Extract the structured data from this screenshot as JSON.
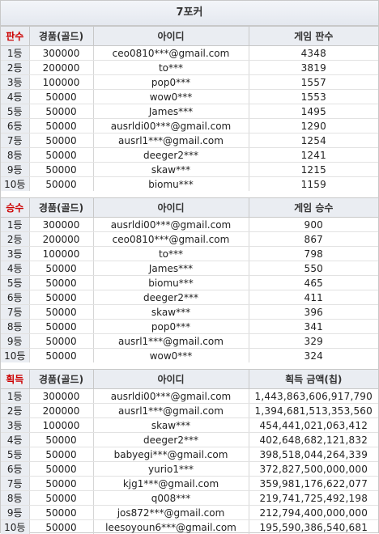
{
  "title": "7포커",
  "sections": [
    {
      "headers": [
        "판수",
        "경품(골드)",
        "아이디",
        "게임 판수"
      ],
      "rows": [
        [
          "1등",
          "300000",
          "ceo0810***@gmail.com",
          "4348"
        ],
        [
          "2등",
          "200000",
          "to***",
          "3819"
        ],
        [
          "3등",
          "100000",
          "pop0***",
          "1557"
        ],
        [
          "4등",
          "50000",
          "wow0***",
          "1553"
        ],
        [
          "5등",
          "50000",
          "James***",
          "1495"
        ],
        [
          "6등",
          "50000",
          "ausrldi00***@gmail.com",
          "1290"
        ],
        [
          "7등",
          "50000",
          "ausrl1***@gmail.com",
          "1254"
        ],
        [
          "8등",
          "50000",
          "deeger2***",
          "1241"
        ],
        [
          "9등",
          "50000",
          "skaw***",
          "1215"
        ],
        [
          "10등",
          "50000",
          "biomu***",
          "1159"
        ]
      ]
    },
    {
      "headers": [
        "승수",
        "경품(골드)",
        "아이디",
        "게임 승수"
      ],
      "rows": [
        [
          "1등",
          "300000",
          "ausrldi00***@gmail.com",
          "900"
        ],
        [
          "2등",
          "200000",
          "ceo0810***@gmail.com",
          "867"
        ],
        [
          "3등",
          "100000",
          "to***",
          "798"
        ],
        [
          "4등",
          "50000",
          "James***",
          "550"
        ],
        [
          "5등",
          "50000",
          "biomu***",
          "465"
        ],
        [
          "6등",
          "50000",
          "deeger2***",
          "411"
        ],
        [
          "7등",
          "50000",
          "skaw***",
          "396"
        ],
        [
          "8등",
          "50000",
          "pop0***",
          "341"
        ],
        [
          "9등",
          "50000",
          "ausrl1***@gmail.com",
          "329"
        ],
        [
          "10등",
          "50000",
          "wow0***",
          "324"
        ]
      ]
    },
    {
      "headers": [
        "획득",
        "경품(골드)",
        "아이디",
        "획득 금액(칩)"
      ],
      "rows": [
        [
          "1등",
          "300000",
          "ausrldi00***@gmail.com",
          "1,443,863,606,917,790"
        ],
        [
          "2등",
          "200000",
          "ausrl1***@gmail.com",
          "1,394,681,513,353,560"
        ],
        [
          "3등",
          "100000",
          "skaw***",
          "454,441,021,063,412"
        ],
        [
          "4등",
          "50000",
          "deeger2***",
          "402,648,682,121,832"
        ],
        [
          "5등",
          "50000",
          "babyegi***@gmail.com",
          "398,518,044,264,339"
        ],
        [
          "6등",
          "50000",
          "yurio1***",
          "372,827,500,000,000"
        ],
        [
          "7등",
          "50000",
          "kjg1***@gmail.com",
          "359,981,176,622,077"
        ],
        [
          "8등",
          "50000",
          "q008***",
          "219,741,725,492,198"
        ],
        [
          "9등",
          "50000",
          "jos872***@gmail.com",
          "212,794,400,000,000"
        ],
        [
          "10등",
          "50000",
          "leesoyoun6***@gmail.com",
          "195,590,386,540,681"
        ]
      ]
    }
  ],
  "colors": {
    "header_bg": "#eaedf2",
    "category_red": "#cc0000",
    "border": "#c8c8c8"
  }
}
